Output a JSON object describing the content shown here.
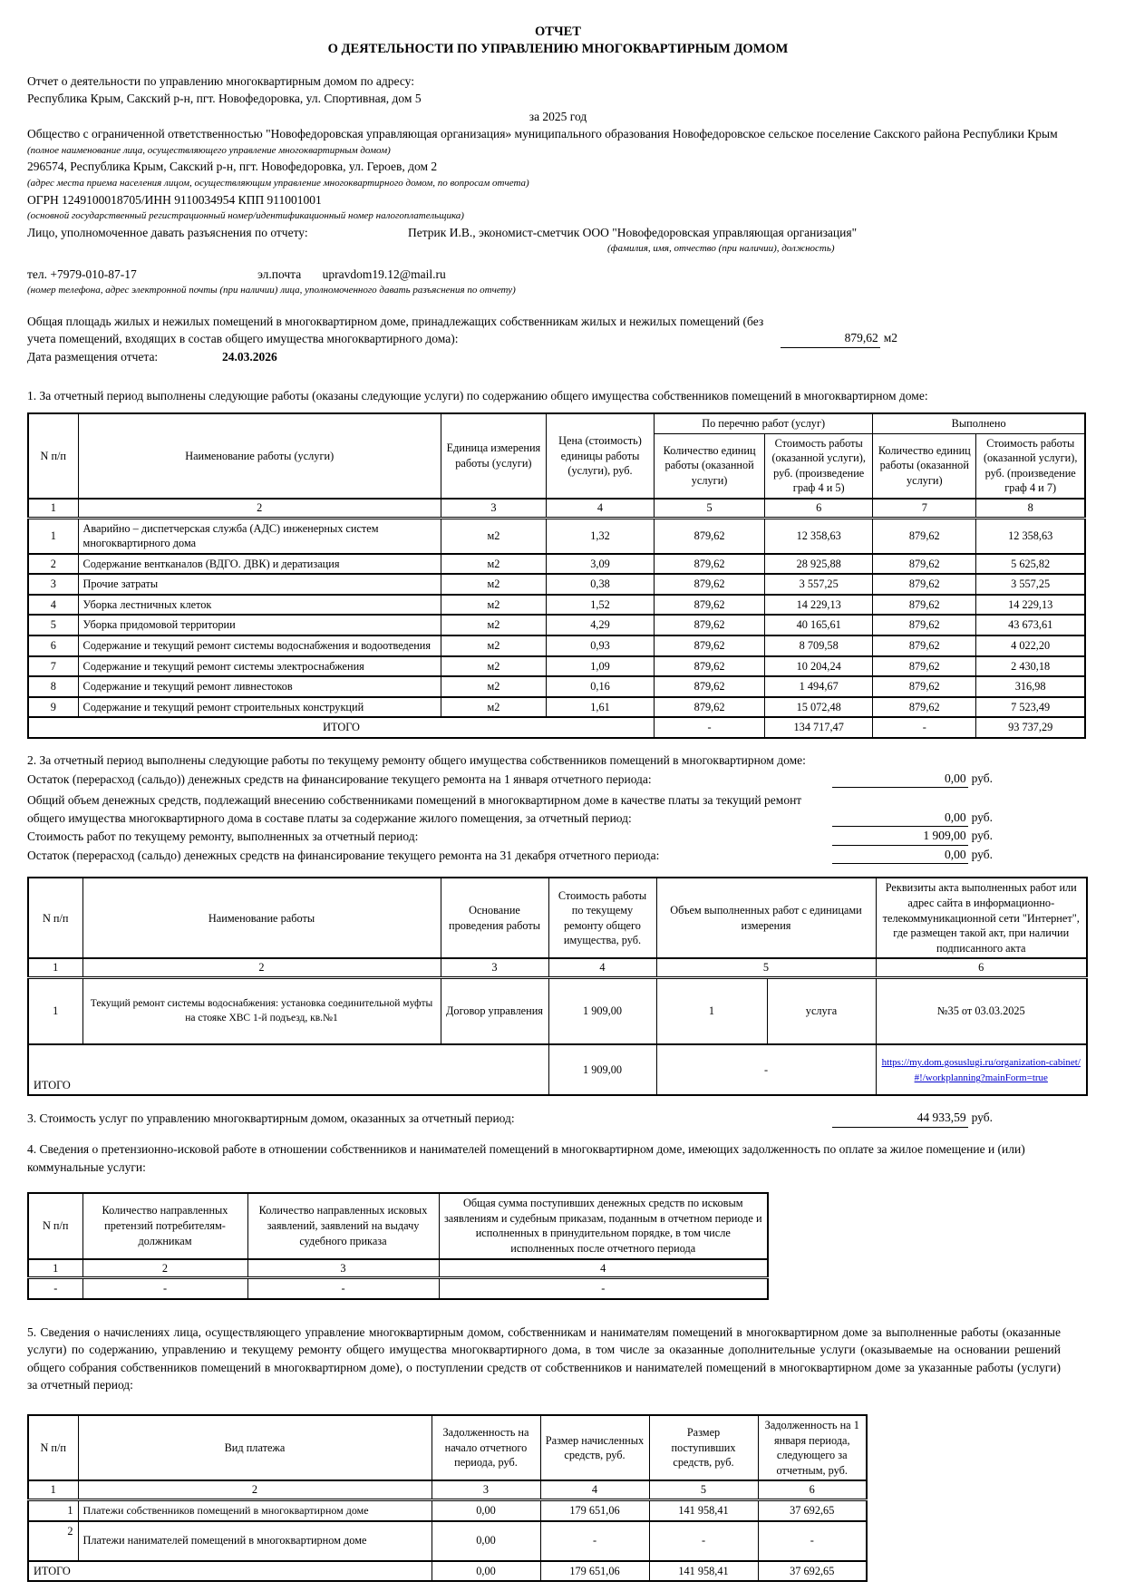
{
  "doc": {
    "title1": "ОТЧЕТ",
    "title2": "О ДЕЯТЕЛЬНОСТИ ПО УПРАВЛЕНИЮ МНОГОКВАРТИРНЫМ ДОМОМ",
    "intro_line": "Отчет о деятельности по управлению многоквартирным домом по адресу:",
    "house_address": "Республика Крым, Сакский р-н, пгт. Новофедоровка, ул. Спортивная, дом 5",
    "period": "за 2025 год",
    "org_name": "Общество с ограниченной ответственностью \"Новофедоровская управляющая организация» муниципального образования Новофедоровское сельское поселение Сакского района Республики Крым",
    "org_name_note": "(полное наименование лица, осуществляющего управление многоквартирным домом)",
    "reception_address": "296574, Республика Крым, Сакский р-н, пгт. Новофедоровка, ул. Героев, дом 2",
    "reception_address_note": "(адрес места приема населения лицом, осуществляющим управление многоквартирного домом, по вопросам отчета)",
    "ogrn_line": "ОГРН 1249100018705/ИНН 9110034954 КПП 911001001",
    "ogrn_note": "(основной государственный регистрационный номер/идентификационный номер налогоплательщика)",
    "authorized_label": "Лицо, уполномоченное давать разъяснения по отчету:",
    "authorized_person": "Петрик И.В., экономист-сметчик ООО \"Новофедоровская управляющая организация\"",
    "authorized_note": "(фамилия, имя, отчество (при наличии), должность)",
    "phone": "тел. +7979-010-87-17",
    "email_label": "эл.почта",
    "email": "upravdom19.12@mail.ru",
    "contact_note": "(номер телефона, адрес электронной почты (при наличии) лица, уполномоченного давать разъяснения по отчету)",
    "area_label": "Общая площадь жилых и нежилых помещений в многоквартирном доме, принадлежащих собственникам жилых и нежилых помещений (без учета помещений, входящих в состав общего имущества многоквартирного дома):",
    "area_value": "879,62",
    "area_unit": "м2",
    "date_label": "Дата размещения отчета:",
    "date_value": "24.03.2026"
  },
  "section1": {
    "heading": "1. За отчетный период выполнены следующие работы (оказаны следующие услуги) по содержанию общего имущества собственников помещений в многоквартирном доме:",
    "table": {
      "col_num": "N п/п",
      "col_name": "Наименование работы (услуги)",
      "col_unit": "Единица измерения работы (услуги)",
      "col_price": "Цена (стоимость) единицы работы (услуги), руб.",
      "group_listed": "По перечню работ (услуг)",
      "group_done": "Выполнено",
      "col_qty_listed": "Количество единиц работы (оказанной услуги)",
      "col_cost_listed": "Стоимость работы (оказанной услуги), руб. (произведение граф 4 и 5)",
      "col_qty_done": "Количество единиц работы (оказанной услуги)",
      "col_cost_done": "Стоимость работы (оказанной услуги), руб. (произведение граф 4 и 7)",
      "num_row": [
        "1",
        "2",
        "3",
        "4",
        "5",
        "6",
        "7",
        "8"
      ],
      "rows": [
        [
          "1",
          "Аварийно – диспетчерская служба (АДС) инженерных систем многоквартирного дома",
          "м2",
          "1,32",
          "879,62",
          "12 358,63",
          "879,62",
          "12 358,63"
        ],
        [
          "2",
          "Содержание вентканалов (ВДГО. ДВК) и дератизация",
          "м2",
          "3,09",
          "879,62",
          "28 925,88",
          "879,62",
          "5 625,82"
        ],
        [
          "3",
          "Прочие затраты",
          "м2",
          "0,38",
          "879,62",
          "3 557,25",
          "879,62",
          "3 557,25"
        ],
        [
          "4",
          "Уборка лестничных клеток",
          "м2",
          "1,52",
          "879,62",
          "14 229,13",
          "879,62",
          "14 229,13"
        ],
        [
          "5",
          "Уборка придомовой территории",
          "м2",
          "4,29",
          "879,62",
          "40 165,61",
          "879,62",
          "43 673,61"
        ],
        [
          "6",
          "Содержание и текущий ремонт системы водоснабжения и водоотведения",
          "м2",
          "0,93",
          "879,62",
          "8 709,58",
          "879,62",
          "4 022,20"
        ],
        [
          "7",
          "Содержание и текущий ремонт системы электроснабжения",
          "м2",
          "1,09",
          "879,62",
          "10 204,24",
          "879,62",
          "2 430,18"
        ],
        [
          "8",
          "Содержание и текущий ремонт ливнестоков",
          "м2",
          "0,16",
          "879,62",
          "1 494,67",
          "879,62",
          "316,98"
        ],
        [
          "9",
          "Содержание и текущий ремонт строительных конструкций",
          "м2",
          "1,61",
          "879,62",
          "15 072,48",
          "879,62",
          "7 523,49"
        ]
      ],
      "total_label": "ИТОГО",
      "total": [
        "-",
        "134 717,47",
        "-",
        "93 737,29"
      ]
    }
  },
  "section2": {
    "heading": "2. За отчетный период выполнены следующие работы по текущему ремонту общего имущества собственников помещений в многоквартирном доме:",
    "lines": [
      {
        "label": "Остаток (перерасход (сальдо)) денежных средств на финансирование текущего ремонта на 1 января отчетного периода:",
        "value": "0,00",
        "unit": "руб."
      },
      {
        "label": "Общий объем денежных средств, подлежащий внесению собственниками помещений в многоквартирном доме в качестве платы за текущий ремонт общего имущества многоквартирного дома в составе платы за содержание жилого помещения, за отчетный период:",
        "value": "0,00",
        "unit": "руб."
      },
      {
        "label": "Стоимость работ по текущему ремонту, выполненных за отчетный период:",
        "value": "1 909,00",
        "unit": "руб."
      },
      {
        "label": "Остаток (перерасход (сальдо) денежных средств на финансирование текущего ремонта на 31 декабря отчетного периода:",
        "value": "0,00",
        "unit": "руб."
      }
    ],
    "table": {
      "col_num": "N п/п",
      "col_name": "Наименование работы",
      "col_basis": "Основание проведения работы",
      "col_cost": "Стоимость работы по текущему ремонту общего имущества, руб.",
      "col_volume": "Объем выполненных работ с единицами измерения",
      "col_act": "Реквизиты акта выполненных работ или адрес сайта в информационно-телекоммуникационной сети \"Интернет\", где размещен такой акт, при наличии подписанного акта",
      "num_row": [
        "1",
        "2",
        "3",
        "4",
        "5",
        "6"
      ],
      "row": {
        "num": "1",
        "name": "Текущий ремонт системы водоснабжения: установка соединительной муфты на стояке ХВС 1-й подъезд, кв.№1",
        "basis": "Договор управления",
        "cost": "1 909,00",
        "volume_qty": "1",
        "volume_unit": "услуга",
        "act": "№35 от 03.03.2025"
      },
      "total_label": "ИТОГО",
      "total_cost": "1 909,00",
      "total_volume": "-",
      "total_link": "https://my.dom.gosuslugi.ru/organization-cabinet/#!/workplanning?mainForm=true"
    }
  },
  "section3": {
    "label": "3. Стоимость услуг по управлению многоквартирным домом, оказанных за отчетный период:",
    "value": "44 933,59",
    "unit": "руб."
  },
  "section4": {
    "heading": "4. Сведения о претензионно-исковой работе в отношении собственников и нанимателей помещений в многоквартирном доме, имеющих задолженность по оплате за жилое помещение и (или) коммунальные услуги:",
    "table": {
      "col_num": "N п/п",
      "col_claims": "Количество направленных претензий потребителям-должникам",
      "col_suits": "Количество направленных исковых заявлений, заявлений на выдачу судебного приказа",
      "col_sum": "Общая сумма поступивших денежных средств по исковым заявлениям и судебным приказам, поданным в отчетном периоде и исполненных в принудительном порядке, в том числе исполненных после отчетного периода",
      "num_row": [
        "1",
        "2",
        "3",
        "4"
      ],
      "row": [
        "-",
        "-",
        "-",
        "-"
      ]
    }
  },
  "section5": {
    "heading": "5. Сведения о начислениях лица, осуществляющего управление многоквартирным домом, собственникам и нанимателям помещений в многоквартирном доме за выполненные работы (оказанные услуги) по содержанию, управлению и текущему ремонту общего имущества многоквартирного дома, в том числе за оказанные дополнительные услуги (оказываемые на основании решений общего собрания собственников помещений в многоквартирном доме), о поступлении средств от собственников и нанимателей помещений в многоквартирном доме за указанные работы (услуги) за отчетный период:",
    "table": {
      "col_num": "N п/п",
      "col_type": "Вид платежа",
      "col_debt_start": "Задолженность на начало отчетного периода, руб.",
      "col_accrued": "Размер начисленных средств, руб.",
      "col_received": "Размер поступивших средств, руб.",
      "col_debt_end": "Задолженность на 1 января периода, следующего за отчетным, руб.",
      "num_row": [
        "1",
        "2",
        "3",
        "4",
        "5",
        "6"
      ],
      "rows": [
        {
          "num": "1",
          "name": "Платежи собственников помещений в многоквартирном доме",
          "debt_start": "0,00",
          "accrued": "179 651,06",
          "received": "141 958,41",
          "debt_end": "37 692,65"
        },
        {
          "num": "2",
          "name": "Платежи нанимателей помещений в многоквартирном доме",
          "debt_start": "0,00",
          "accrued": "-",
          "received": "-",
          "debt_end": "-"
        }
      ],
      "total_label": "ИТОГО",
      "total": {
        "debt_start": "0,00",
        "accrued": "179 651,06",
        "received": "141 958,41",
        "debt_end": "37 692,65"
      }
    }
  }
}
